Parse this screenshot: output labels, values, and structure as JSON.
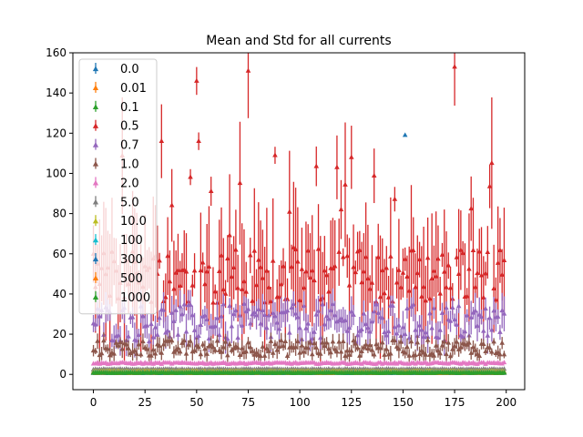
{
  "chart_data": {
    "type": "scatter",
    "title": "Mean and Std for all currents",
    "xlabel": "",
    "ylabel": "",
    "xlim": [
      -9.95,
      208.95
    ],
    "ylim": [
      -7.6,
      160
    ],
    "xticks": [
      0,
      25,
      50,
      75,
      100,
      125,
      150,
      175,
      200
    ],
    "yticks": [
      0,
      20,
      40,
      60,
      80,
      100,
      120,
      140,
      160
    ],
    "legend_position": "upper-left",
    "marker": "triangle-up with vertical error bars",
    "series": [
      {
        "name": "0.0",
        "color": "#1f77b4",
        "n": 200,
        "mean_level": 0.6,
        "std_level": 0.2
      },
      {
        "name": "0.01",
        "color": "#ff7f0e",
        "n": 200,
        "mean_level": 0.7,
        "std_level": 0.3
      },
      {
        "name": "0.1",
        "color": "#2ca02c",
        "n": 200,
        "mean_level": 0.8,
        "std_level": 0.4
      },
      {
        "name": "0.5",
        "color": "#d62728",
        "n": 200,
        "mean_level": 45,
        "mean_range": [
          27,
          153
        ],
        "std_level": 12,
        "highlighted_points": [
          [
            50,
            146
          ],
          [
            75,
            151
          ],
          [
            175,
            153
          ],
          [
            33,
            116
          ],
          [
            51,
            116
          ],
          [
            118,
            103
          ],
          [
            88,
            109
          ],
          [
            125,
            108
          ]
        ]
      },
      {
        "name": "0.7",
        "color": "#9467bd",
        "n": 200,
        "mean_level": 24,
        "mean_range": [
          16,
          35
        ],
        "std_level": 6
      },
      {
        "name": "1.0",
        "color": "#8c564b",
        "n": 200,
        "mean_level": 13,
        "mean_range": [
          9,
          17
        ],
        "std_level": 3
      },
      {
        "name": "2.0",
        "color": "#e377c2",
        "n": 200,
        "mean_level": 5.5,
        "std_level": 0.8
      },
      {
        "name": "5.0",
        "color": "#7f7f7f",
        "n": 200,
        "mean_level": 2.5,
        "std_level": 0.4
      },
      {
        "name": "10.0",
        "color": "#bcbd22",
        "n": 200,
        "mean_level": 1.5,
        "std_level": 0.3
      },
      {
        "name": "100",
        "color": "#17becf",
        "n": 200,
        "mean_level": 1.0,
        "std_level": 0.2
      },
      {
        "name": "300",
        "color": "#1f77b4",
        "n": 200,
        "mean_level": 0.9,
        "std_level": 0.2,
        "highlighted_points": [
          [
            151,
            119
          ]
        ]
      },
      {
        "name": "500",
        "color": "#ff7f0e",
        "n": 200,
        "mean_level": 0.8,
        "std_level": 0.2
      },
      {
        "name": "1000",
        "color": "#2ca02c",
        "n": 200,
        "mean_level": 0.7,
        "std_level": 0.2
      }
    ]
  }
}
